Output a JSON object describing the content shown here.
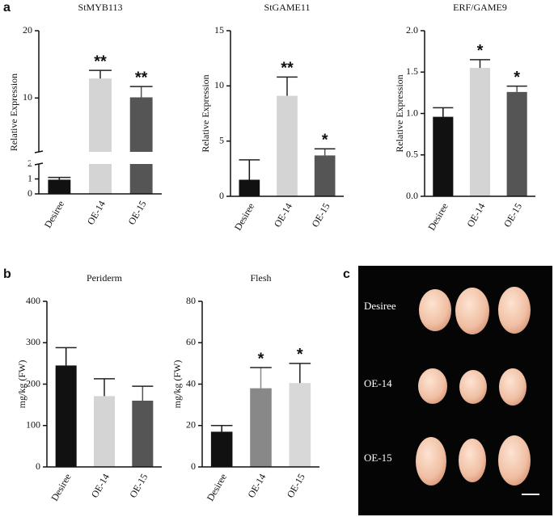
{
  "chart_data": [
    {
      "type": "bar",
      "title": "StMYB113",
      "ylabel": "Relative Expression",
      "categories": [
        "Desiree",
        "OE-14",
        "OE-15"
      ],
      "values": [
        0.95,
        12.9,
        10.1
      ],
      "errors": [
        0.15,
        1.2,
        1.6
      ],
      "colors": [
        "#111111",
        "#d4d4d4",
        "#555555"
      ],
      "annotations": [
        null,
        "**",
        "**"
      ],
      "ylim": [
        0,
        20
      ],
      "ybreak": 2,
      "yticks": [
        0,
        1,
        2,
        10,
        20
      ]
    },
    {
      "type": "bar",
      "title": "StGAME11",
      "ylabel": "Relative Expression",
      "categories": [
        "Desiree",
        "OE-14",
        "OE-15"
      ],
      "values": [
        1.5,
        9.1,
        3.7
      ],
      "errors": [
        1.8,
        1.7,
        0.6
      ],
      "colors": [
        "#111111",
        "#d4d4d4",
        "#555555"
      ],
      "annotations": [
        null,
        "**",
        "*"
      ],
      "ylim": [
        0,
        15
      ],
      "yticks": [
        0,
        5,
        10,
        15
      ]
    },
    {
      "type": "bar",
      "title": "ERF/GAME9",
      "ylabel": "Relative Expression",
      "categories": [
        "Desiree",
        "OE-14",
        "OE-15"
      ],
      "values": [
        0.96,
        1.55,
        1.26
      ],
      "errors": [
        0.11,
        0.1,
        0.07
      ],
      "colors": [
        "#111111",
        "#d4d4d4",
        "#555555"
      ],
      "annotations": [
        null,
        "*",
        "*"
      ],
      "ylim": [
        0,
        2
      ],
      "yticks": [
        {
          "value": 0,
          "label": "0.0"
        },
        0.5,
        {
          "value": 1,
          "label": "1.0"
        },
        1.5,
        {
          "value": 2,
          "label": "2.0"
        }
      ]
    },
    {
      "type": "bar",
      "title": "Periderm",
      "ylabel": "mg/kg (FW)",
      "categories": [
        "Desiree",
        "OE-14",
        "OE-15"
      ],
      "values": [
        245,
        171,
        160
      ],
      "errors": [
        43,
        42,
        35
      ],
      "colors": [
        "#111111",
        "#d4d4d4",
        "#555555"
      ],
      "ylim": [
        0,
        400
      ],
      "yticks": [
        0,
        100,
        200,
        300,
        400
      ]
    },
    {
      "type": "bar",
      "title": "Flesh",
      "ylabel": "mg/kg (FW)",
      "categories": [
        "Desiree",
        "OE-14",
        "OE-15"
      ],
      "values": [
        17,
        38,
        40.5
      ],
      "errors": [
        3,
        10,
        9.5
      ],
      "colors": [
        "#111111",
        "#888888",
        "#d8d8d8"
      ],
      "annotations": [
        null,
        "*",
        "*"
      ],
      "ylim": [
        0,
        80
      ],
      "yticks": [
        0,
        20,
        40,
        60,
        80
      ]
    }
  ],
  "panel_labels": [
    "a",
    "b",
    "c"
  ],
  "photo": {
    "rows": [
      "Desiree",
      "OE-14",
      "OE-15"
    ]
  }
}
